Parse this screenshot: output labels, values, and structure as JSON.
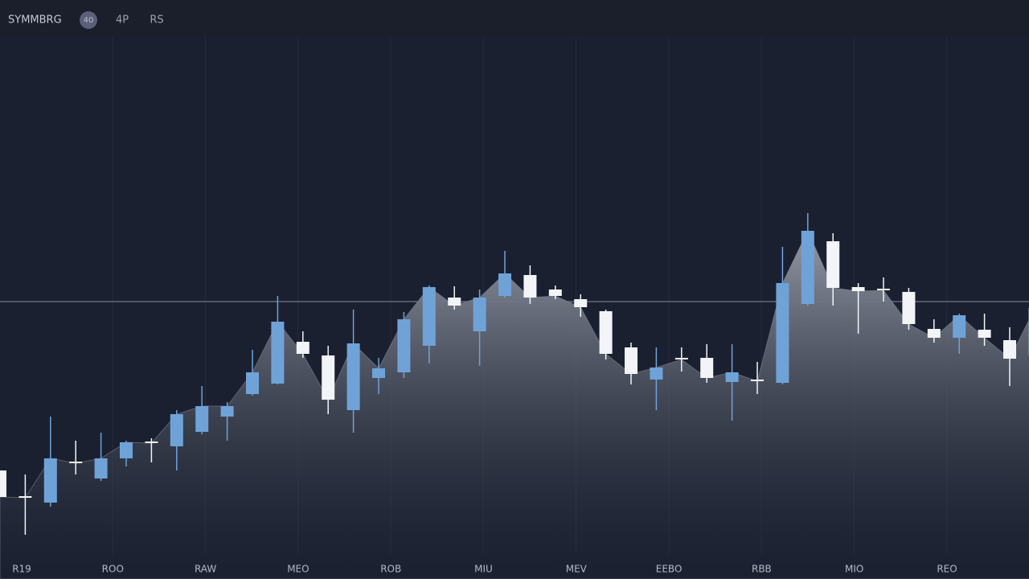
{
  "header": {
    "title": "SYMMBRG",
    "badge": "40",
    "tabs": [
      "4P",
      "RS"
    ]
  },
  "chart_data": {
    "type": "candlestick",
    "categories": [
      "R19",
      "ROO",
      "RAW",
      "MEO",
      "ROB",
      "MIU",
      "MEV",
      "EEBO",
      "RBB",
      "MIO",
      "REO"
    ],
    "open": [
      135,
      103,
      95,
      146,
      125,
      150,
      171,
      165,
      183,
      202,
      230,
      243,
      295,
      278,
      210,
      250,
      257,
      290,
      350,
      308,
      352,
      378,
      360,
      348,
      333,
      288,
      248,
      275,
      275,
      245,
      248,
      244,
      342,
      420,
      363,
      361,
      357,
      311,
      300,
      310,
      297,
      278
    ],
    "high": [
      135,
      130,
      202,
      172,
      182,
      172,
      175,
      210,
      240,
      220,
      285,
      352,
      308,
      290,
      335,
      275,
      332,
      365,
      364,
      360,
      408,
      390,
      365,
      354,
      335,
      294,
      288,
      288,
      292,
      292,
      270,
      413,
      455,
      430,
      368,
      375,
      362,
      323,
      330,
      330,
      313,
      348
    ],
    "low": [
      102,
      55,
      90,
      130,
      122,
      140,
      145,
      135,
      180,
      172,
      228,
      242,
      275,
      205,
      182,
      230,
      250,
      268,
      335,
      265,
      350,
      342,
      348,
      326,
      273,
      242,
      210,
      258,
      244,
      197,
      230,
      242,
      340,
      340,
      305,
      345,
      310,
      294,
      280,
      290,
      240,
      265
    ],
    "close": [
      102,
      101,
      150,
      144,
      150,
      170,
      169,
      205,
      215,
      215,
      257,
      320,
      280,
      223,
      293,
      262,
      323,
      363,
      340,
      350,
      380,
      350,
      352,
      338,
      280,
      255,
      263,
      273,
      250,
      257,
      246,
      368,
      433,
      362,
      358,
      359,
      317,
      300,
      328,
      300,
      274,
      337
    ],
    "up_color": "#6fa3d8",
    "down_color": "#f2f4f7",
    "area_color": "#8a909c",
    "reference_line": 345,
    "ylim": [
      0,
      720
    ]
  }
}
